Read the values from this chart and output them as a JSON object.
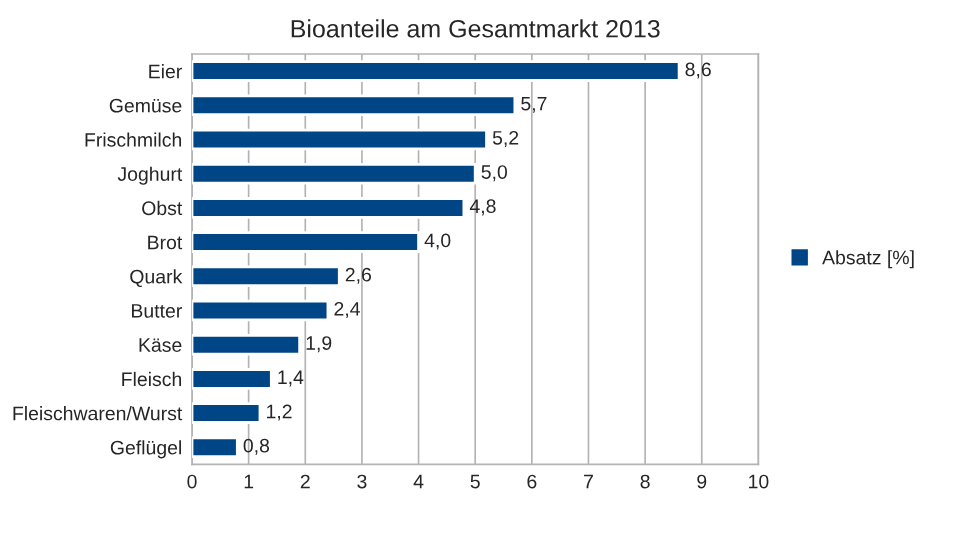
{
  "chart_data": {
    "type": "bar",
    "orientation": "horizontal",
    "title": "Bioanteile am Gesamtmarkt 2013",
    "categories": [
      "Eier",
      "Gemüse",
      "Frischmilch",
      "Joghurt",
      "Obst",
      "Brot",
      "Quark",
      "Butter",
      "Käse",
      "Fleisch",
      "Fleischwaren/Wurst",
      "Geflügel"
    ],
    "series": [
      {
        "name": "Absatz [%]",
        "color": "#004586",
        "values": [
          8.6,
          5.7,
          5.2,
          5.0,
          4.8,
          4.0,
          2.6,
          2.4,
          1.9,
          1.4,
          1.2,
          0.8
        ],
        "value_labels": [
          "8,6",
          "5,7",
          "5,2",
          "5,0",
          "4,8",
          "4,0",
          "2,6",
          "2,4",
          "1,9",
          "1,4",
          "1,2",
          "0,8"
        ]
      }
    ],
    "xlim": [
      0,
      10
    ],
    "xticks": [
      0,
      1,
      2,
      3,
      4,
      5,
      6,
      7,
      8,
      9,
      10
    ],
    "grid": "x",
    "legend": "right"
  }
}
